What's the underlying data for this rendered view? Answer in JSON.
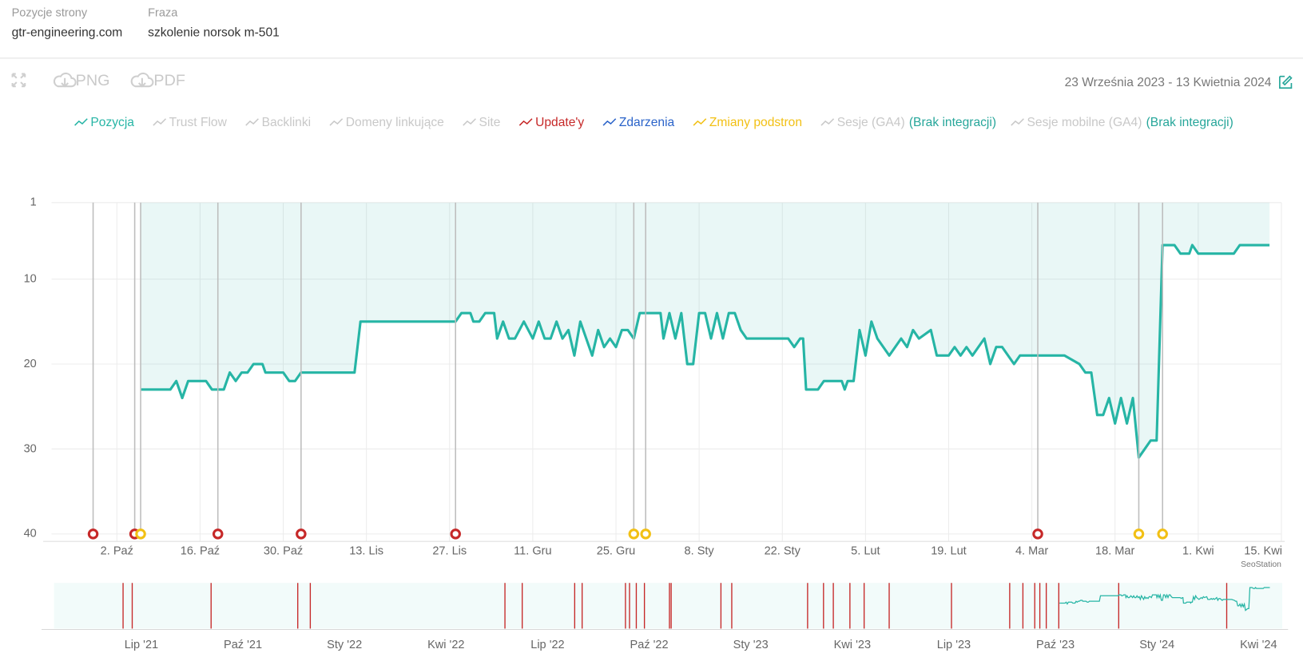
{
  "header": {
    "fields": [
      {
        "label": "Pozycje strony",
        "value": "gtr-engineering.com"
      },
      {
        "label": "Fraza",
        "value": "szkolenie norsok m-501"
      }
    ]
  },
  "toolbar": {
    "buttons": [
      "PNG",
      "PDF"
    ],
    "date_range": "23 Września 2023 - 13 Kwietnia 2024"
  },
  "chart_data": {
    "type": "line",
    "series": [
      {
        "name": "Pozycja",
        "color": "#26b5a5",
        "x": [
          15,
          20,
          21,
          22,
          23,
          26,
          27,
          29,
          30,
          31,
          32,
          33,
          34,
          35.5,
          36,
          39,
          40,
          41,
          42,
          51,
          52,
          68,
          69,
          70.5,
          71,
          72,
          73,
          74.5,
          75,
          76,
          77,
          78,
          79.5,
          81,
          82,
          83,
          84,
          85,
          86,
          87,
          88,
          89,
          90,
          91,
          92,
          93,
          94,
          95,
          96,
          97,
          98,
          99,
          102.5,
          103,
          104,
          105,
          106,
          107,
          108,
          109,
          110,
          111,
          112,
          113,
          114,
          115,
          116,
          117,
          124,
          125,
          126,
          126.5,
          127,
          129,
          130,
          133,
          133.5,
          134,
          135,
          136,
          137,
          138,
          139,
          141,
          142,
          143,
          144,
          145,
          146,
          148,
          149,
          151,
          152,
          153,
          154,
          155,
          156,
          157,
          158,
          159,
          160,
          162,
          163,
          170.5,
          173,
          174,
          175,
          176,
          177,
          178,
          179,
          180,
          181,
          182,
          183,
          184,
          185,
          186,
          187,
          189,
          190,
          191.5,
          192,
          193,
          199,
          200,
          205
        ],
        "values": [
          23,
          23,
          22,
          24,
          22,
          22,
          23,
          23,
          21,
          22,
          21,
          21,
          20,
          20,
          21,
          21,
          22,
          22,
          21,
          21,
          15,
          15,
          14,
          14,
          15,
          15,
          14,
          14,
          17,
          15,
          17,
          17,
          15,
          17,
          15,
          17,
          17,
          15,
          17,
          16,
          19,
          15,
          17,
          19,
          16,
          18,
          17,
          18,
          16,
          16,
          17,
          14,
          14,
          17,
          14,
          17,
          14,
          20,
          20,
          14,
          14,
          17,
          14,
          17,
          14,
          14,
          16,
          17,
          17,
          18,
          17,
          17,
          23,
          23,
          22,
          22,
          23,
          22,
          22,
          16,
          19,
          15,
          17,
          19,
          18,
          17,
          18,
          16,
          17,
          16,
          19,
          19,
          18,
          19,
          18,
          19,
          18,
          17,
          20,
          18,
          18,
          20,
          19,
          19,
          20,
          21,
          21,
          26,
          26,
          24,
          27,
          24,
          27,
          24,
          31,
          30,
          29,
          29,
          6,
          6,
          7,
          7,
          6,
          7,
          7,
          6,
          6
        ]
      },
      {
        "name": "Trust Flow",
        "color": "#c8c8c8"
      },
      {
        "name": "Backlinki",
        "color": "#c8c8c8"
      },
      {
        "name": "Domeny linkujące",
        "color": "#c8c8c8"
      },
      {
        "name": "Site",
        "color": "#c8c8c8"
      },
      {
        "name": "Update'y",
        "color": "#c62828",
        "x": [
          7,
          14,
          28,
          42,
          68,
          166
        ]
      },
      {
        "name": "Zdarzenia",
        "color": "#2a63c9"
      },
      {
        "name": "Zmiany podstron",
        "color": "#f2c014",
        "x": [
          15,
          98,
          100,
          183,
          187
        ]
      },
      {
        "name": "Sesje (GA4)",
        "color": "#c8c8c8",
        "note": "(Brak integracji)"
      },
      {
        "name": "Sesje mobilne (GA4)",
        "color": "#c8c8c8",
        "note": "(Brak integracji)"
      }
    ],
    "note_color": "#26a69a",
    "y_reversed": true,
    "ylim": [
      1,
      40
    ],
    "yticks": [
      1,
      10,
      20,
      30,
      40
    ],
    "xlim": [
      0,
      207
    ],
    "xticks": [
      {
        "value": 11,
        "label": "2. Paź"
      },
      {
        "value": 25,
        "label": "16. Paź"
      },
      {
        "value": 39,
        "label": "30. Paź"
      },
      {
        "value": 53,
        "label": "13. Lis"
      },
      {
        "value": 67,
        "label": "27. Lis"
      },
      {
        "value": 81,
        "label": "11. Gru"
      },
      {
        "value": 95,
        "label": "25. Gru"
      },
      {
        "value": 109,
        "label": "8. Sty"
      },
      {
        "value": 123,
        "label": "22. Sty"
      },
      {
        "value": 137,
        "label": "5. Lut"
      },
      {
        "value": 151,
        "label": "19. Lut"
      },
      {
        "value": 165,
        "label": "4. Mar"
      },
      {
        "value": 179,
        "label": "18. Mar"
      },
      {
        "value": 193,
        "label": "1. Kwi"
      },
      {
        "value": 207,
        "label": "15. Kwi"
      }
    ],
    "grid": true,
    "credit": "SeoStation",
    "navigator": {
      "xlim": [
        -2.58,
        33.7
      ],
      "xticks": [
        {
          "value": 0,
          "label": "Lip '21"
        },
        {
          "value": 3,
          "label": "Paź '21"
        },
        {
          "value": 6,
          "label": "Sty '22"
        },
        {
          "value": 9,
          "label": "Kwi '22"
        },
        {
          "value": 12,
          "label": "Lip '22"
        },
        {
          "value": 15,
          "label": "Paź '22"
        },
        {
          "value": 18,
          "label": "Sty '23"
        },
        {
          "value": 21,
          "label": "Kwi '23"
        },
        {
          "value": 24,
          "label": "Lip '23"
        },
        {
          "value": 27,
          "label": "Paź '23"
        },
        {
          "value": 30,
          "label": "Sty '24"
        },
        {
          "value": 33,
          "label": "Kwi '24"
        }
      ],
      "updates": [
        -0.54,
        -0.27,
        2.06,
        4.62,
        4.99,
        10.74,
        11.25,
        12.8,
        13.02,
        14.3,
        14.42,
        14.62,
        14.86,
        15.6,
        15.65,
        17.12,
        17.44,
        19.68,
        20.15,
        20.44,
        20.93,
        21.35,
        22.09,
        23.93,
        25.65,
        26.04,
        26.39,
        26.54,
        26.73,
        27.1,
        28.87,
        32.06
      ]
    }
  }
}
